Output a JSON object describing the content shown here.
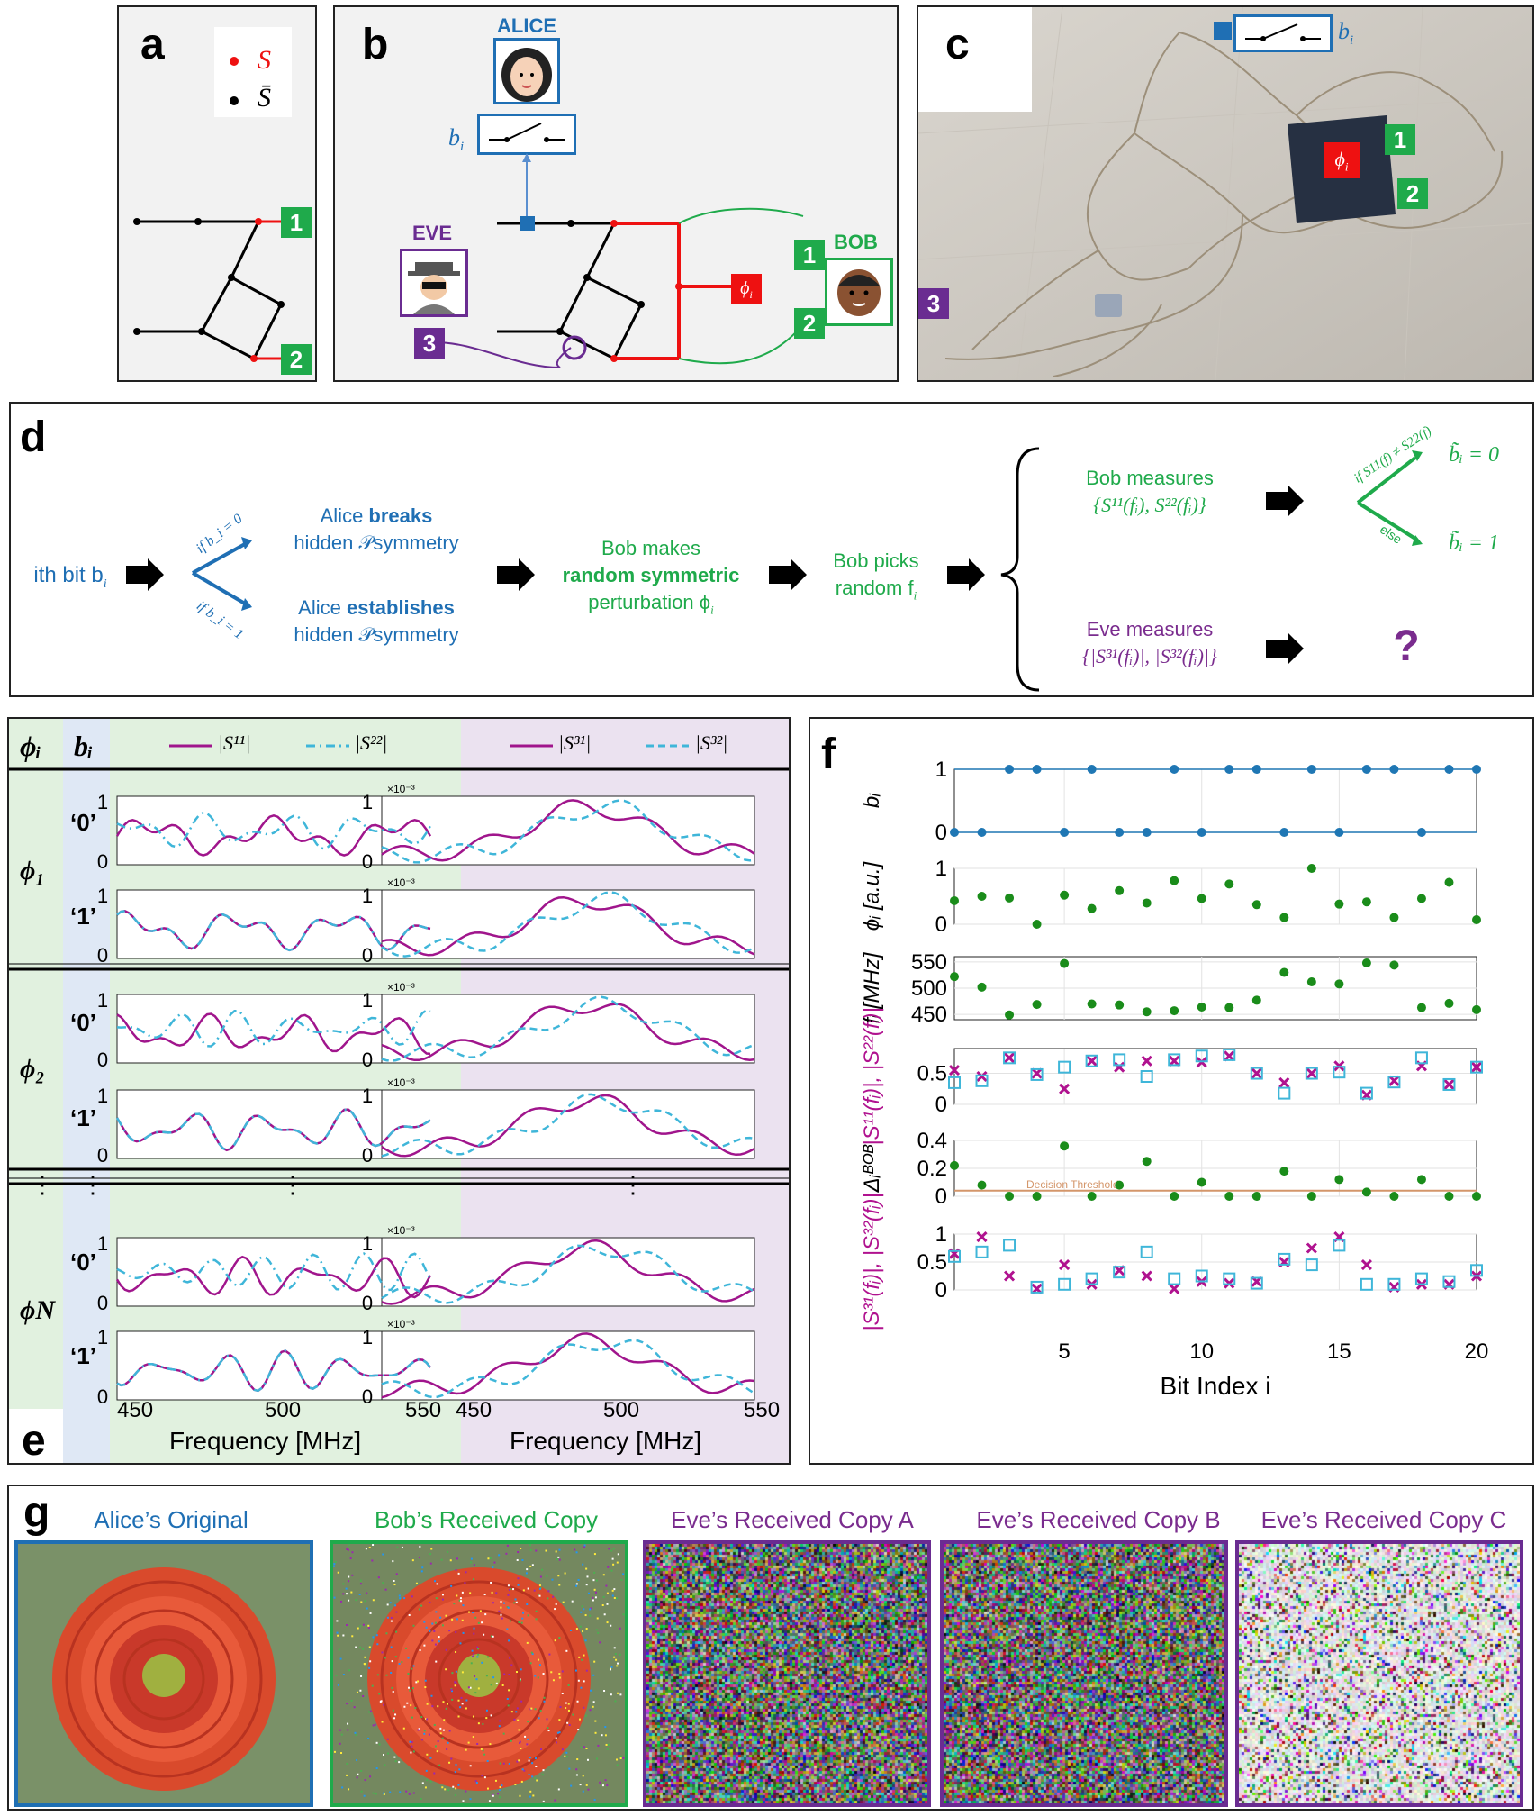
{
  "panels": {
    "a": "a",
    "b": "b",
    "c": "c",
    "d": "d",
    "e": "e",
    "f": "f",
    "g": "g"
  },
  "legend_a": {
    "s": "S",
    "sbar": "S̄"
  },
  "port_labels": {
    "p1": "1",
    "p2": "2",
    "p3": "3"
  },
  "b_panel": {
    "alice": "ALICE",
    "eve": "EVE",
    "bob": "BOB",
    "bi": "b",
    "bi_sub": "i",
    "phi": "ϕ",
    "phi_sub": "i"
  },
  "c_panel": {
    "bi": "b",
    "bi_sub": "i",
    "phi": "ϕ",
    "phi_sub": "i"
  },
  "d_panel": {
    "start": "ith bit b",
    "start_sub": "i",
    "if0": "if b_i = 0",
    "if1": "if b_i = 1",
    "alice_breaks_1": "Alice ",
    "alice_breaks_bold": "breaks",
    "alice_breaks_2": "hidden 𝒫symmetry",
    "alice_est_1": "Alice ",
    "alice_est_bold": "establishes",
    "alice_est_2": "hidden 𝒫symmetry",
    "bob_makes_1": "Bob makes",
    "bob_makes_bold": "random symmetric",
    "bob_makes_3": "perturbation ϕ",
    "bob_picks_1": "Bob picks",
    "bob_picks_2": "random f",
    "bob_measures_1": "Bob measures",
    "bob_measures_2": "{S¹¹(fᵢ), S²²(fᵢ)}",
    "eve_measures_1": "Eve measures",
    "eve_measures_2": "{|S³¹(fᵢ)|, |S³²(fᵢ)|}",
    "cond": "if S11(f) ≠ S22(f)",
    "else": "else",
    "out0": "b̃ᵢ = 0",
    "out1": "b̃ᵢ = 1",
    "question": "?"
  },
  "e_panel": {
    "col_phi": "ϕᵢ",
    "col_b": "bᵢ",
    "leg_s11": "|S¹¹|",
    "leg_s22": "|S²²|",
    "leg_s31": "|S³¹|",
    "leg_s32": "|S³²|",
    "rows": [
      {
        "phi": "ϕ₁",
        "b0": "‘0’",
        "b1": "‘1’"
      },
      {
        "phi": "ϕ₂",
        "b0": "‘0’",
        "b1": "‘1’"
      },
      {
        "phi": "ϕN",
        "b0": "‘0’",
        "b1": "‘1’"
      }
    ],
    "ytick_top": "1",
    "ytick_bot": "0",
    "scale": "×10⁻³",
    "xticks": [
      "450",
      "500",
      "550"
    ],
    "xlabel": "Frequency [MHz]",
    "dots": "⋮"
  },
  "chart_data": {
    "type": "scatter",
    "x": [
      1,
      2,
      3,
      4,
      5,
      6,
      7,
      8,
      9,
      10,
      11,
      12,
      13,
      14,
      15,
      16,
      17,
      18,
      19,
      20
    ],
    "xlabel": "Bit Index i",
    "xticks": [
      5,
      10,
      15,
      20
    ],
    "series": [
      {
        "name": "b_i",
        "values": [
          0,
          0,
          1,
          1,
          0,
          1,
          0,
          0,
          1,
          0,
          1,
          1,
          0,
          1,
          0,
          1,
          1,
          0,
          1,
          1
        ]
      },
      {
        "name": "phi_i",
        "values": [
          0.42,
          0.5,
          0.47,
          0.0,
          0.52,
          0.28,
          0.6,
          0.38,
          0.78,
          0.46,
          0.72,
          0.35,
          0.12,
          1.0,
          0.36,
          0.4,
          0.12,
          0.46,
          0.75,
          0.08
        ]
      },
      {
        "name": "f_i",
        "values": [
          522,
          502,
          449,
          469,
          547,
          470,
          468,
          455,
          457,
          464,
          463,
          477,
          530,
          512,
          508,
          548,
          544,
          463,
          471,
          459
        ]
      },
      {
        "name": "S11",
        "values": [
          0.55,
          0.45,
          0.75,
          0.5,
          0.25,
          0.7,
          0.6,
          0.7,
          0.7,
          0.68,
          0.78,
          0.5,
          0.35,
          0.5,
          0.62,
          0.15,
          0.38,
          0.62,
          0.32,
          0.6
        ]
      },
      {
        "name": "S22",
        "values": [
          0.35,
          0.38,
          0.75,
          0.48,
          0.6,
          0.7,
          0.72,
          0.45,
          0.72,
          0.78,
          0.8,
          0.5,
          0.18,
          0.5,
          0.52,
          0.18,
          0.36,
          0.75,
          0.32,
          0.6
        ]
      },
      {
        "name": "Delta",
        "values": [
          0.22,
          0.08,
          0.0,
          0.0,
          0.36,
          0.0,
          0.08,
          0.25,
          0.0,
          0.1,
          0.0,
          0.0,
          0.18,
          0.0,
          0.12,
          0.03,
          0.0,
          0.12,
          0.0,
          0.0
        ]
      },
      {
        "name": "S31",
        "values": [
          0.65,
          0.95,
          0.25,
          0.02,
          0.45,
          0.1,
          0.35,
          0.25,
          0.02,
          0.15,
          0.12,
          0.15,
          0.5,
          0.75,
          0.95,
          0.45,
          0.05,
          0.1,
          0.1,
          0.25
        ]
      },
      {
        "name": "S32",
        "values": [
          0.6,
          0.68,
          0.8,
          0.05,
          0.1,
          0.2,
          0.32,
          0.68,
          0.2,
          0.25,
          0.2,
          0.12,
          0.55,
          0.45,
          0.8,
          0.1,
          0.1,
          0.2,
          0.15,
          0.35
        ]
      }
    ],
    "rows": [
      {
        "ylabel": "bᵢ",
        "yticks": [
          "0",
          "1"
        ],
        "ylim": [
          0,
          1
        ]
      },
      {
        "ylabel": "ϕᵢ [a.u.]",
        "yticks": [
          "0",
          "1"
        ],
        "ylim": [
          0,
          1
        ]
      },
      {
        "ylabel": "fᵢ [MHz]",
        "yticks": [
          "450",
          "500",
          "550"
        ],
        "ylim": [
          440,
          560
        ]
      },
      {
        "ylabel": "|S¹¹(fᵢ)|, |S²²(fᵢ)|",
        "yticks": [
          "0",
          "0.5"
        ],
        "ylim": [
          0,
          0.9
        ]
      },
      {
        "ylabel": "Δᵢᴮᴼᴮ",
        "yticks": [
          "0",
          "0.2",
          "0.4"
        ],
        "ylim": [
          0,
          0.4
        ],
        "threshold": 0.04,
        "threshold_label": "Decision Threshold"
      },
      {
        "ylabel": "|S³¹(fᵢ)|, |S³²(fᵢ)|",
        "yticks": [
          "0",
          "0.5",
          "1"
        ],
        "ylim": [
          0,
          1
        ]
      }
    ],
    "colors": {
      "blue": "#1f77b4",
      "green": "#1a8c1a",
      "magenta": "#b0128f",
      "cyan": "#3fb6d9",
      "threshold": "#d4966a"
    }
  },
  "g_panel": {
    "alice": "Alice’s Original",
    "bob": "Bob’s Received Copy",
    "eveA": "Eve’s Received Copy A",
    "eveB": "Eve’s Received Copy B",
    "eveC": "Eve’s Received Copy C"
  }
}
